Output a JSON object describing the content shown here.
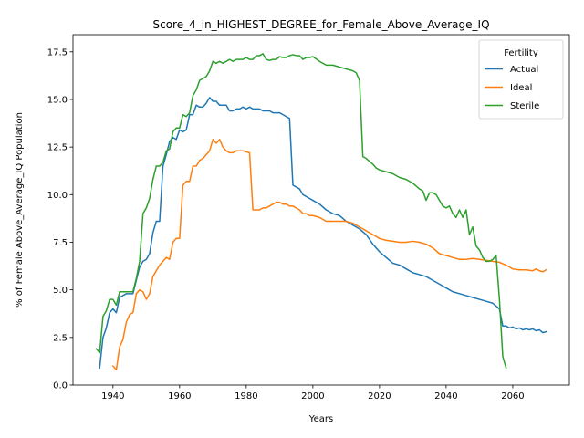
{
  "chart_data": {
    "type": "line",
    "title": "Score_4_in_HIGHEST_DEGREE_for_Female_Above_Average_IQ",
    "xlabel": "Years",
    "ylabel": "% of Female Above_Average_IQ Population",
    "xlim": [
      1928,
      2077
    ],
    "ylim": [
      0,
      18.4
    ],
    "xticks": [
      1940,
      1960,
      1980,
      2000,
      2020,
      2040,
      2060
    ],
    "xtick_labels": [
      "1940",
      "1960",
      "1980",
      "2000",
      "2020",
      "2040",
      "2060"
    ],
    "yticks": [
      0,
      2.5,
      5,
      7.5,
      10,
      12.5,
      15,
      17.5
    ],
    "ytick_labels": [
      "0.0",
      "2.5",
      "5.0",
      "7.5",
      "10.0",
      "12.5",
      "15.0",
      "17.5"
    ],
    "grid": false,
    "legend": {
      "title": "Fertility",
      "placement": "top-right"
    },
    "series": [
      {
        "name": "Actual",
        "color": "#1f77b4",
        "points": [
          [
            1936,
            0.9
          ],
          [
            1937,
            2.5
          ],
          [
            1938,
            3.0
          ],
          [
            1939,
            3.8
          ],
          [
            1940,
            4.0
          ],
          [
            1941,
            3.8
          ],
          [
            1942,
            4.6
          ],
          [
            1943,
            4.7
          ],
          [
            1944,
            4.8
          ],
          [
            1946,
            4.8
          ],
          [
            1947,
            5.5
          ],
          [
            1948,
            6.2
          ],
          [
            1949,
            6.5
          ],
          [
            1950,
            6.6
          ],
          [
            1951,
            6.9
          ],
          [
            1952,
            8.0
          ],
          [
            1953,
            8.6
          ],
          [
            1954,
            8.6
          ],
          [
            1955,
            11.5
          ],
          [
            1956,
            12.1
          ],
          [
            1957,
            12.8
          ],
          [
            1958,
            13.0
          ],
          [
            1959,
            12.9
          ],
          [
            1960,
            13.4
          ],
          [
            1961,
            13.3
          ],
          [
            1962,
            13.4
          ],
          [
            1963,
            14.2
          ],
          [
            1964,
            14.2
          ],
          [
            1965,
            14.7
          ],
          [
            1966,
            14.6
          ],
          [
            1967,
            14.6
          ],
          [
            1968,
            14.8
          ],
          [
            1969,
            15.1
          ],
          [
            1970,
            14.9
          ],
          [
            1971,
            14.9
          ],
          [
            1972,
            14.7
          ],
          [
            1973,
            14.7
          ],
          [
            1974,
            14.7
          ],
          [
            1975,
            14.4
          ],
          [
            1976,
            14.4
          ],
          [
            1977,
            14.5
          ],
          [
            1978,
            14.5
          ],
          [
            1979,
            14.6
          ],
          [
            1980,
            14.5
          ],
          [
            1981,
            14.6
          ],
          [
            1982,
            14.5
          ],
          [
            1983,
            14.5
          ],
          [
            1984,
            14.5
          ],
          [
            1985,
            14.4
          ],
          [
            1986,
            14.4
          ],
          [
            1987,
            14.4
          ],
          [
            1988,
            14.3
          ],
          [
            1989,
            14.3
          ],
          [
            1990,
            14.3
          ],
          [
            1991,
            14.2
          ],
          [
            1992,
            14.1
          ],
          [
            1993,
            14.0
          ],
          [
            1994,
            10.5
          ],
          [
            1995,
            10.4
          ],
          [
            1996,
            10.3
          ],
          [
            1997,
            10.0
          ],
          [
            1998,
            9.9
          ],
          [
            1999,
            9.8
          ],
          [
            2000,
            9.7
          ],
          [
            2002,
            9.5
          ],
          [
            2004,
            9.2
          ],
          [
            2006,
            9.0
          ],
          [
            2008,
            8.9
          ],
          [
            2010,
            8.6
          ],
          [
            2012,
            8.4
          ],
          [
            2014,
            8.2
          ],
          [
            2016,
            7.9
          ],
          [
            2018,
            7.4
          ],
          [
            2020,
            7.0
          ],
          [
            2022,
            6.7
          ],
          [
            2024,
            6.4
          ],
          [
            2026,
            6.3
          ],
          [
            2028,
            6.1
          ],
          [
            2030,
            5.9
          ],
          [
            2032,
            5.8
          ],
          [
            2034,
            5.7
          ],
          [
            2036,
            5.5
          ],
          [
            2038,
            5.3
          ],
          [
            2040,
            5.1
          ],
          [
            2042,
            4.9
          ],
          [
            2044,
            4.8
          ],
          [
            2046,
            4.7
          ],
          [
            2048,
            4.6
          ],
          [
            2050,
            4.5
          ],
          [
            2052,
            4.4
          ],
          [
            2054,
            4.3
          ],
          [
            2056,
            4.0
          ],
          [
            2057,
            3.1
          ],
          [
            2058,
            3.1
          ],
          [
            2059,
            3.0
          ],
          [
            2060,
            3.05
          ],
          [
            2061,
            2.95
          ],
          [
            2062,
            3.0
          ],
          [
            2063,
            2.9
          ],
          [
            2064,
            2.95
          ],
          [
            2065,
            2.9
          ],
          [
            2066,
            2.95
          ],
          [
            2067,
            2.85
          ],
          [
            2068,
            2.9
          ],
          [
            2069,
            2.75
          ],
          [
            2070,
            2.8
          ]
        ]
      },
      {
        "name": "Ideal",
        "color": "#ff7f0e",
        "points": [
          [
            1940,
            1.0
          ],
          [
            1941,
            0.8
          ],
          [
            1942,
            2.0
          ],
          [
            1943,
            2.4
          ],
          [
            1944,
            3.3
          ],
          [
            1945,
            3.7
          ],
          [
            1946,
            3.8
          ],
          [
            1947,
            4.8
          ],
          [
            1948,
            5.0
          ],
          [
            1949,
            4.9
          ],
          [
            1950,
            4.5
          ],
          [
            1951,
            4.8
          ],
          [
            1952,
            5.7
          ],
          [
            1953,
            6.0
          ],
          [
            1954,
            6.3
          ],
          [
            1955,
            6.5
          ],
          [
            1956,
            6.7
          ],
          [
            1957,
            6.6
          ],
          [
            1958,
            7.5
          ],
          [
            1959,
            7.7
          ],
          [
            1960,
            7.7
          ],
          [
            1961,
            10.5
          ],
          [
            1962,
            10.7
          ],
          [
            1963,
            10.7
          ],
          [
            1964,
            11.5
          ],
          [
            1965,
            11.5
          ],
          [
            1966,
            11.8
          ],
          [
            1967,
            11.9
          ],
          [
            1968,
            12.1
          ],
          [
            1969,
            12.3
          ],
          [
            1970,
            12.9
          ],
          [
            1971,
            12.7
          ],
          [
            1972,
            12.9
          ],
          [
            1973,
            12.5
          ],
          [
            1974,
            12.3
          ],
          [
            1975,
            12.2
          ],
          [
            1976,
            12.2
          ],
          [
            1977,
            12.3
          ],
          [
            1978,
            12.3
          ],
          [
            1979,
            12.3
          ],
          [
            1980,
            12.25
          ],
          [
            1981,
            12.2
          ],
          [
            1982,
            9.2
          ],
          [
            1983,
            9.2
          ],
          [
            1984,
            9.2
          ],
          [
            1985,
            9.3
          ],
          [
            1986,
            9.3
          ],
          [
            1987,
            9.4
          ],
          [
            1988,
            9.5
          ],
          [
            1989,
            9.6
          ],
          [
            1990,
            9.6
          ],
          [
            1991,
            9.5
          ],
          [
            1992,
            9.5
          ],
          [
            1993,
            9.4
          ],
          [
            1994,
            9.4
          ],
          [
            1995,
            9.3
          ],
          [
            1996,
            9.2
          ],
          [
            1997,
            9.0
          ],
          [
            1998,
            9.0
          ],
          [
            1999,
            8.9
          ],
          [
            2000,
            8.9
          ],
          [
            2002,
            8.8
          ],
          [
            2004,
            8.6
          ],
          [
            2006,
            8.6
          ],
          [
            2008,
            8.6
          ],
          [
            2010,
            8.6
          ],
          [
            2012,
            8.5
          ],
          [
            2014,
            8.3
          ],
          [
            2016,
            8.1
          ],
          [
            2018,
            7.9
          ],
          [
            2020,
            7.7
          ],
          [
            2022,
            7.6
          ],
          [
            2024,
            7.55
          ],
          [
            2026,
            7.5
          ],
          [
            2028,
            7.5
          ],
          [
            2030,
            7.55
          ],
          [
            2032,
            7.5
          ],
          [
            2034,
            7.4
          ],
          [
            2036,
            7.2
          ],
          [
            2038,
            6.9
          ],
          [
            2040,
            6.8
          ],
          [
            2042,
            6.7
          ],
          [
            2044,
            6.6
          ],
          [
            2046,
            6.6
          ],
          [
            2048,
            6.65
          ],
          [
            2050,
            6.6
          ],
          [
            2052,
            6.55
          ],
          [
            2054,
            6.5
          ],
          [
            2056,
            6.45
          ],
          [
            2058,
            6.3
          ],
          [
            2059,
            6.2
          ],
          [
            2060,
            6.1
          ],
          [
            2062,
            6.05
          ],
          [
            2064,
            6.05
          ],
          [
            2066,
            6.0
          ],
          [
            2067,
            6.1
          ],
          [
            2068,
            6.0
          ],
          [
            2069,
            5.95
          ],
          [
            2070,
            6.05
          ]
        ]
      },
      {
        "name": "Sterile",
        "color": "#2ca02c",
        "points": [
          [
            1935,
            1.9
          ],
          [
            1936,
            1.7
          ],
          [
            1937,
            3.6
          ],
          [
            1938,
            3.9
          ],
          [
            1939,
            4.5
          ],
          [
            1940,
            4.5
          ],
          [
            1941,
            4.2
          ],
          [
            1942,
            4.9
          ],
          [
            1943,
            4.9
          ],
          [
            1944,
            4.9
          ],
          [
            1946,
            4.9
          ],
          [
            1947,
            5.6
          ],
          [
            1948,
            6.5
          ],
          [
            1949,
            9.0
          ],
          [
            1950,
            9.3
          ],
          [
            1951,
            9.8
          ],
          [
            1952,
            10.8
          ],
          [
            1953,
            11.5
          ],
          [
            1954,
            11.5
          ],
          [
            1955,
            11.7
          ],
          [
            1956,
            12.3
          ],
          [
            1957,
            12.4
          ],
          [
            1958,
            13.3
          ],
          [
            1959,
            13.5
          ],
          [
            1960,
            13.5
          ],
          [
            1961,
            14.2
          ],
          [
            1962,
            14.1
          ],
          [
            1963,
            14.3
          ],
          [
            1964,
            15.2
          ],
          [
            1965,
            15.5
          ],
          [
            1966,
            16.0
          ],
          [
            1967,
            16.1
          ],
          [
            1968,
            16.2
          ],
          [
            1969,
            16.5
          ],
          [
            1970,
            17.0
          ],
          [
            1971,
            16.9
          ],
          [
            1972,
            17.0
          ],
          [
            1973,
            16.9
          ],
          [
            1974,
            17.0
          ],
          [
            1975,
            17.1
          ],
          [
            1976,
            17.0
          ],
          [
            1977,
            17.1
          ],
          [
            1978,
            17.1
          ],
          [
            1979,
            17.1
          ],
          [
            1980,
            17.2
          ],
          [
            1981,
            17.1
          ],
          [
            1982,
            17.1
          ],
          [
            1983,
            17.3
          ],
          [
            1984,
            17.3
          ],
          [
            1985,
            17.4
          ],
          [
            1986,
            17.1
          ],
          [
            1987,
            17.05
          ],
          [
            1988,
            17.1
          ],
          [
            1989,
            17.1
          ],
          [
            1990,
            17.25
          ],
          [
            1991,
            17.2
          ],
          [
            1992,
            17.2
          ],
          [
            1993,
            17.3
          ],
          [
            1994,
            17.35
          ],
          [
            1995,
            17.3
          ],
          [
            1996,
            17.3
          ],
          [
            1997,
            17.1
          ],
          [
            1998,
            17.2
          ],
          [
            1999,
            17.2
          ],
          [
            2000,
            17.25
          ],
          [
            2002,
            17.0
          ],
          [
            2004,
            16.8
          ],
          [
            2006,
            16.8
          ],
          [
            2008,
            16.7
          ],
          [
            2010,
            16.6
          ],
          [
            2012,
            16.5
          ],
          [
            2013,
            16.4
          ],
          [
            2014,
            16.0
          ],
          [
            2015,
            12.0
          ],
          [
            2016,
            11.9
          ],
          [
            2018,
            11.6
          ],
          [
            2019,
            11.4
          ],
          [
            2020,
            11.3
          ],
          [
            2022,
            11.2
          ],
          [
            2024,
            11.1
          ],
          [
            2026,
            10.9
          ],
          [
            2028,
            10.8
          ],
          [
            2030,
            10.6
          ],
          [
            2032,
            10.3
          ],
          [
            2033,
            10.2
          ],
          [
            2034,
            9.7
          ],
          [
            2035,
            10.1
          ],
          [
            2036,
            10.1
          ],
          [
            2037,
            10.0
          ],
          [
            2039,
            9.4
          ],
          [
            2040,
            9.3
          ],
          [
            2041,
            9.4
          ],
          [
            2042,
            9.0
          ],
          [
            2043,
            8.8
          ],
          [
            2044,
            9.2
          ],
          [
            2045,
            8.8
          ],
          [
            2046,
            9.2
          ],
          [
            2047,
            7.9
          ],
          [
            2048,
            8.3
          ],
          [
            2049,
            7.3
          ],
          [
            2050,
            7.1
          ],
          [
            2051,
            6.7
          ],
          [
            2052,
            6.5
          ],
          [
            2053,
            6.5
          ],
          [
            2054,
            6.6
          ],
          [
            2055,
            6.8
          ],
          [
            2056,
            4.5
          ],
          [
            2057,
            1.5
          ],
          [
            2058,
            0.9
          ]
        ]
      }
    ]
  }
}
